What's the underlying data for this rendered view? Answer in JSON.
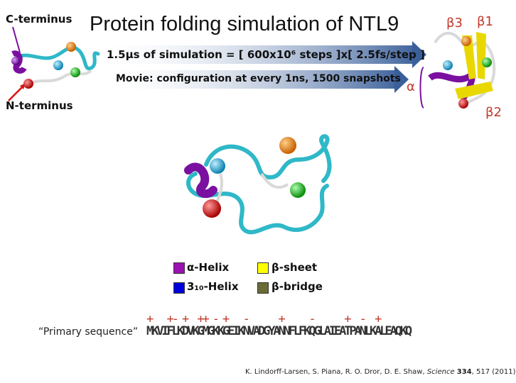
{
  "title": "Protein folding simulation of NTL9",
  "labels": {
    "c_terminus": "C-terminus",
    "n_terminus": "N-terminus",
    "beta3": "β3",
    "beta1": "β1",
    "beta2": "β2",
    "alpha": "α"
  },
  "arrows": {
    "simulation_text": "1.5μs of simulation = [ 600x10⁶ steps ]x[ 2.5fs/step ]",
    "movie_text": "Movie: configuration at every 1ns, 1500 snapshots"
  },
  "legend": [
    {
      "label": "α-Helix",
      "color": "#9b10b0"
    },
    {
      "label": "β-sheet",
      "color": "#ffff00"
    },
    {
      "label": "3₁₀-Helix",
      "color": "#0000dd"
    },
    {
      "label": "β-bridge",
      "color": "#6b6b35"
    }
  ],
  "sequence": {
    "label": "“Primary sequence”",
    "residues": "MKVIFLKDVKGMGKKGEIKNVADGYANNFLFKQGLAIEATPANLKALEAQKQ",
    "charges": "+   +- +  ++ - +   -      +     -      +  -  +"
  },
  "citation": {
    "prefix": "K. Lindorff-Larsen, S. Piana, R. O. Dror, D. E. Shaw, ",
    "journal": "Science",
    "volume": "334",
    "suffix": ", 517 (2011)"
  },
  "colors": {
    "arrow_blue": "#3a5f9a",
    "backbone": "#2fb8c8",
    "helix": "#7a10a0",
    "sheet": "#e8d800",
    "sphere_orange": "#e67e00",
    "sphere_cyan": "#22aadd",
    "sphere_green": "#22bb22",
    "sphere_red": "#dd1111",
    "sphere_purple": "#8800aa"
  }
}
